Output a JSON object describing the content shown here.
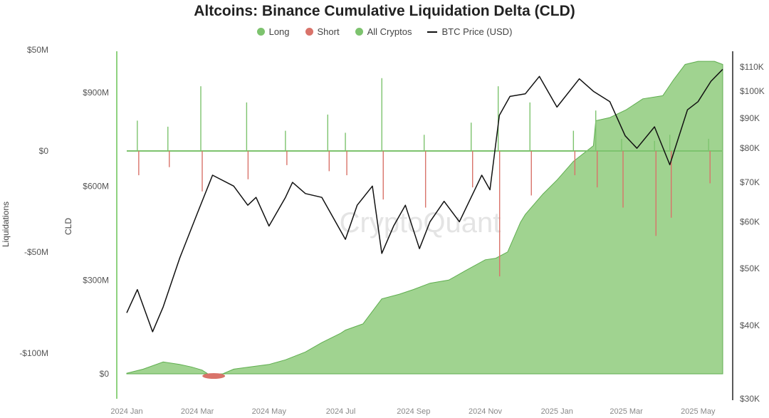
{
  "title": "Altcoins: Binance Cumulative Liquidation Delta (CLD)",
  "legend": [
    {
      "label": "Long",
      "color": "#7dc36e",
      "shape": "dot"
    },
    {
      "label": "Short",
      "color": "#d9736a",
      "shape": "dot"
    },
    {
      "label": "All Cryptos",
      "color": "#7dc36e",
      "shape": "dot"
    },
    {
      "label": "BTC Price (USD)",
      "color": "#111111",
      "shape": "line"
    }
  ],
  "watermark": "CryptoQuant",
  "colors": {
    "long": "#7dc36e",
    "short": "#d9736a",
    "area": "#8fcb7d",
    "area_line": "#5fae4f",
    "btc": "#111111",
    "axis": "#8fd27f"
  },
  "chart_data": {
    "type": "area",
    "x_ticks": [
      "2024 Jan",
      "2024 Mar",
      "2024 May",
      "2024 Jul",
      "2024 Sep",
      "2024 Nov",
      "2025 Jan",
      "2025 Mar",
      "2025 May"
    ],
    "axes": {
      "liquidations": {
        "label": "Liquidations",
        "ticks": [
          "$50M",
          "$0",
          "-$50M",
          "-$100M"
        ],
        "range": [
          -135,
          60
        ],
        "unit": "USD millions"
      },
      "cld": {
        "label": "CLD",
        "ticks": [
          "$900M",
          "$600M",
          "$300M",
          "$0"
        ],
        "range": [
          -20,
          1060
        ],
        "unit": "USD millions"
      },
      "btc": {
        "label": "",
        "ticks": [
          "$110K",
          "$100K",
          "$90K",
          "$80K",
          "$70K",
          "$60K",
          "$50K",
          "$40K",
          "$30K"
        ],
        "scale": "log",
        "range": [
          30,
          115
        ],
        "unit": "USD thousands"
      }
    },
    "series": [
      {
        "name": "All Cryptos",
        "axis": "cld",
        "x": [
          "2024-01-01",
          "2024-01-15",
          "2024-02-01",
          "2024-02-15",
          "2024-02-25",
          "2024-03-05",
          "2024-03-15",
          "2024-04-01",
          "2024-04-15",
          "2024-05-01",
          "2024-05-15",
          "2024-06-01",
          "2024-06-15",
          "2024-07-01",
          "2024-07-05",
          "2024-07-20",
          "2024-08-01",
          "2024-08-05",
          "2024-08-20",
          "2024-09-01",
          "2024-09-15",
          "2024-10-01",
          "2024-10-15",
          "2024-11-01",
          "2024-11-10",
          "2024-11-20",
          "2024-12-01",
          "2024-12-05",
          "2024-12-20",
          "2025-01-01",
          "2025-01-15",
          "2025-02-01",
          "2025-02-03",
          "2025-02-15",
          "2025-03-01",
          "2025-03-15",
          "2025-04-01",
          "2025-04-10",
          "2025-04-20",
          "2025-05-01",
          "2025-05-15",
          "2025-05-22"
        ],
        "values": [
          2,
          15,
          38,
          30,
          22,
          12,
          -12,
          15,
          22,
          30,
          45,
          70,
          100,
          130,
          140,
          160,
          220,
          240,
          255,
          270,
          290,
          300,
          330,
          365,
          370,
          390,
          485,
          510,
          575,
          620,
          680,
          730,
          810,
          820,
          845,
          880,
          890,
          940,
          990,
          1000,
          1000,
          990
        ]
      },
      {
        "name": "BTC Price (USD)",
        "axis": "btc",
        "x": [
          "2024-01-01",
          "2024-01-10",
          "2024-01-23",
          "2024-02-01",
          "2024-02-15",
          "2024-03-01",
          "2024-03-14",
          "2024-04-01",
          "2024-04-13",
          "2024-04-20",
          "2024-05-01",
          "2024-05-15",
          "2024-05-21",
          "2024-06-01",
          "2024-06-15",
          "2024-07-05",
          "2024-07-15",
          "2024-07-28",
          "2024-08-05",
          "2024-08-15",
          "2024-08-25",
          "2024-09-06",
          "2024-09-15",
          "2024-09-27",
          "2024-10-10",
          "2024-10-29",
          "2024-11-05",
          "2024-11-13",
          "2024-11-22",
          "2024-12-05",
          "2024-12-17",
          "2025-01-01",
          "2025-01-20",
          "2025-02-01",
          "2025-02-15",
          "2025-02-28",
          "2025-03-10",
          "2025-03-25",
          "2025-04-07",
          "2025-04-22",
          "2025-05-01",
          "2025-05-12",
          "2025-05-22"
        ],
        "values": [
          42,
          46,
          39,
          43,
          52,
          62,
          72,
          69,
          64,
          66,
          59,
          66,
          70,
          67,
          66,
          56,
          64,
          69,
          53,
          59,
          64,
          54,
          60,
          65,
          60,
          72,
          68,
          91,
          98,
          99,
          106,
          94,
          105,
          100,
          96,
          84,
          80,
          87,
          75,
          93,
          96,
          104,
          109
        ]
      },
      {
        "name": "Long",
        "axis": "liquidations",
        "x": [
          "2024-01-10",
          "2024-02-05",
          "2024-03-04",
          "2024-04-12",
          "2024-05-15",
          "2024-06-20",
          "2024-07-05",
          "2024-08-05",
          "2024-09-10",
          "2024-10-20",
          "2024-11-12",
          "2024-12-09",
          "2025-01-15",
          "2025-02-03",
          "2025-02-25",
          "2025-03-25",
          "2025-04-07",
          "2025-05-10"
        ],
        "values": [
          15,
          12,
          32,
          24,
          10,
          18,
          9,
          36,
          8,
          14,
          32,
          24,
          10,
          20,
          6,
          5,
          8,
          6
        ]
      },
      {
        "name": "Short",
        "axis": "liquidations",
        "x": [
          "2024-01-10",
          "2024-02-05",
          "2024-03-04",
          "2024-04-12",
          "2024-05-15",
          "2024-06-20",
          "2024-07-05",
          "2024-08-05",
          "2024-09-10",
          "2024-10-20",
          "2024-11-12",
          "2024-12-09",
          "2025-01-15",
          "2025-02-03",
          "2025-02-25",
          "2025-03-25",
          "2025-04-07",
          "2025-05-10"
        ],
        "values": [
          -12,
          -8,
          -20,
          -14,
          -7,
          -10,
          -12,
          -24,
          -28,
          -18,
          -62,
          -22,
          -12,
          -18,
          -28,
          -42,
          -33,
          -16
        ]
      }
    ]
  }
}
